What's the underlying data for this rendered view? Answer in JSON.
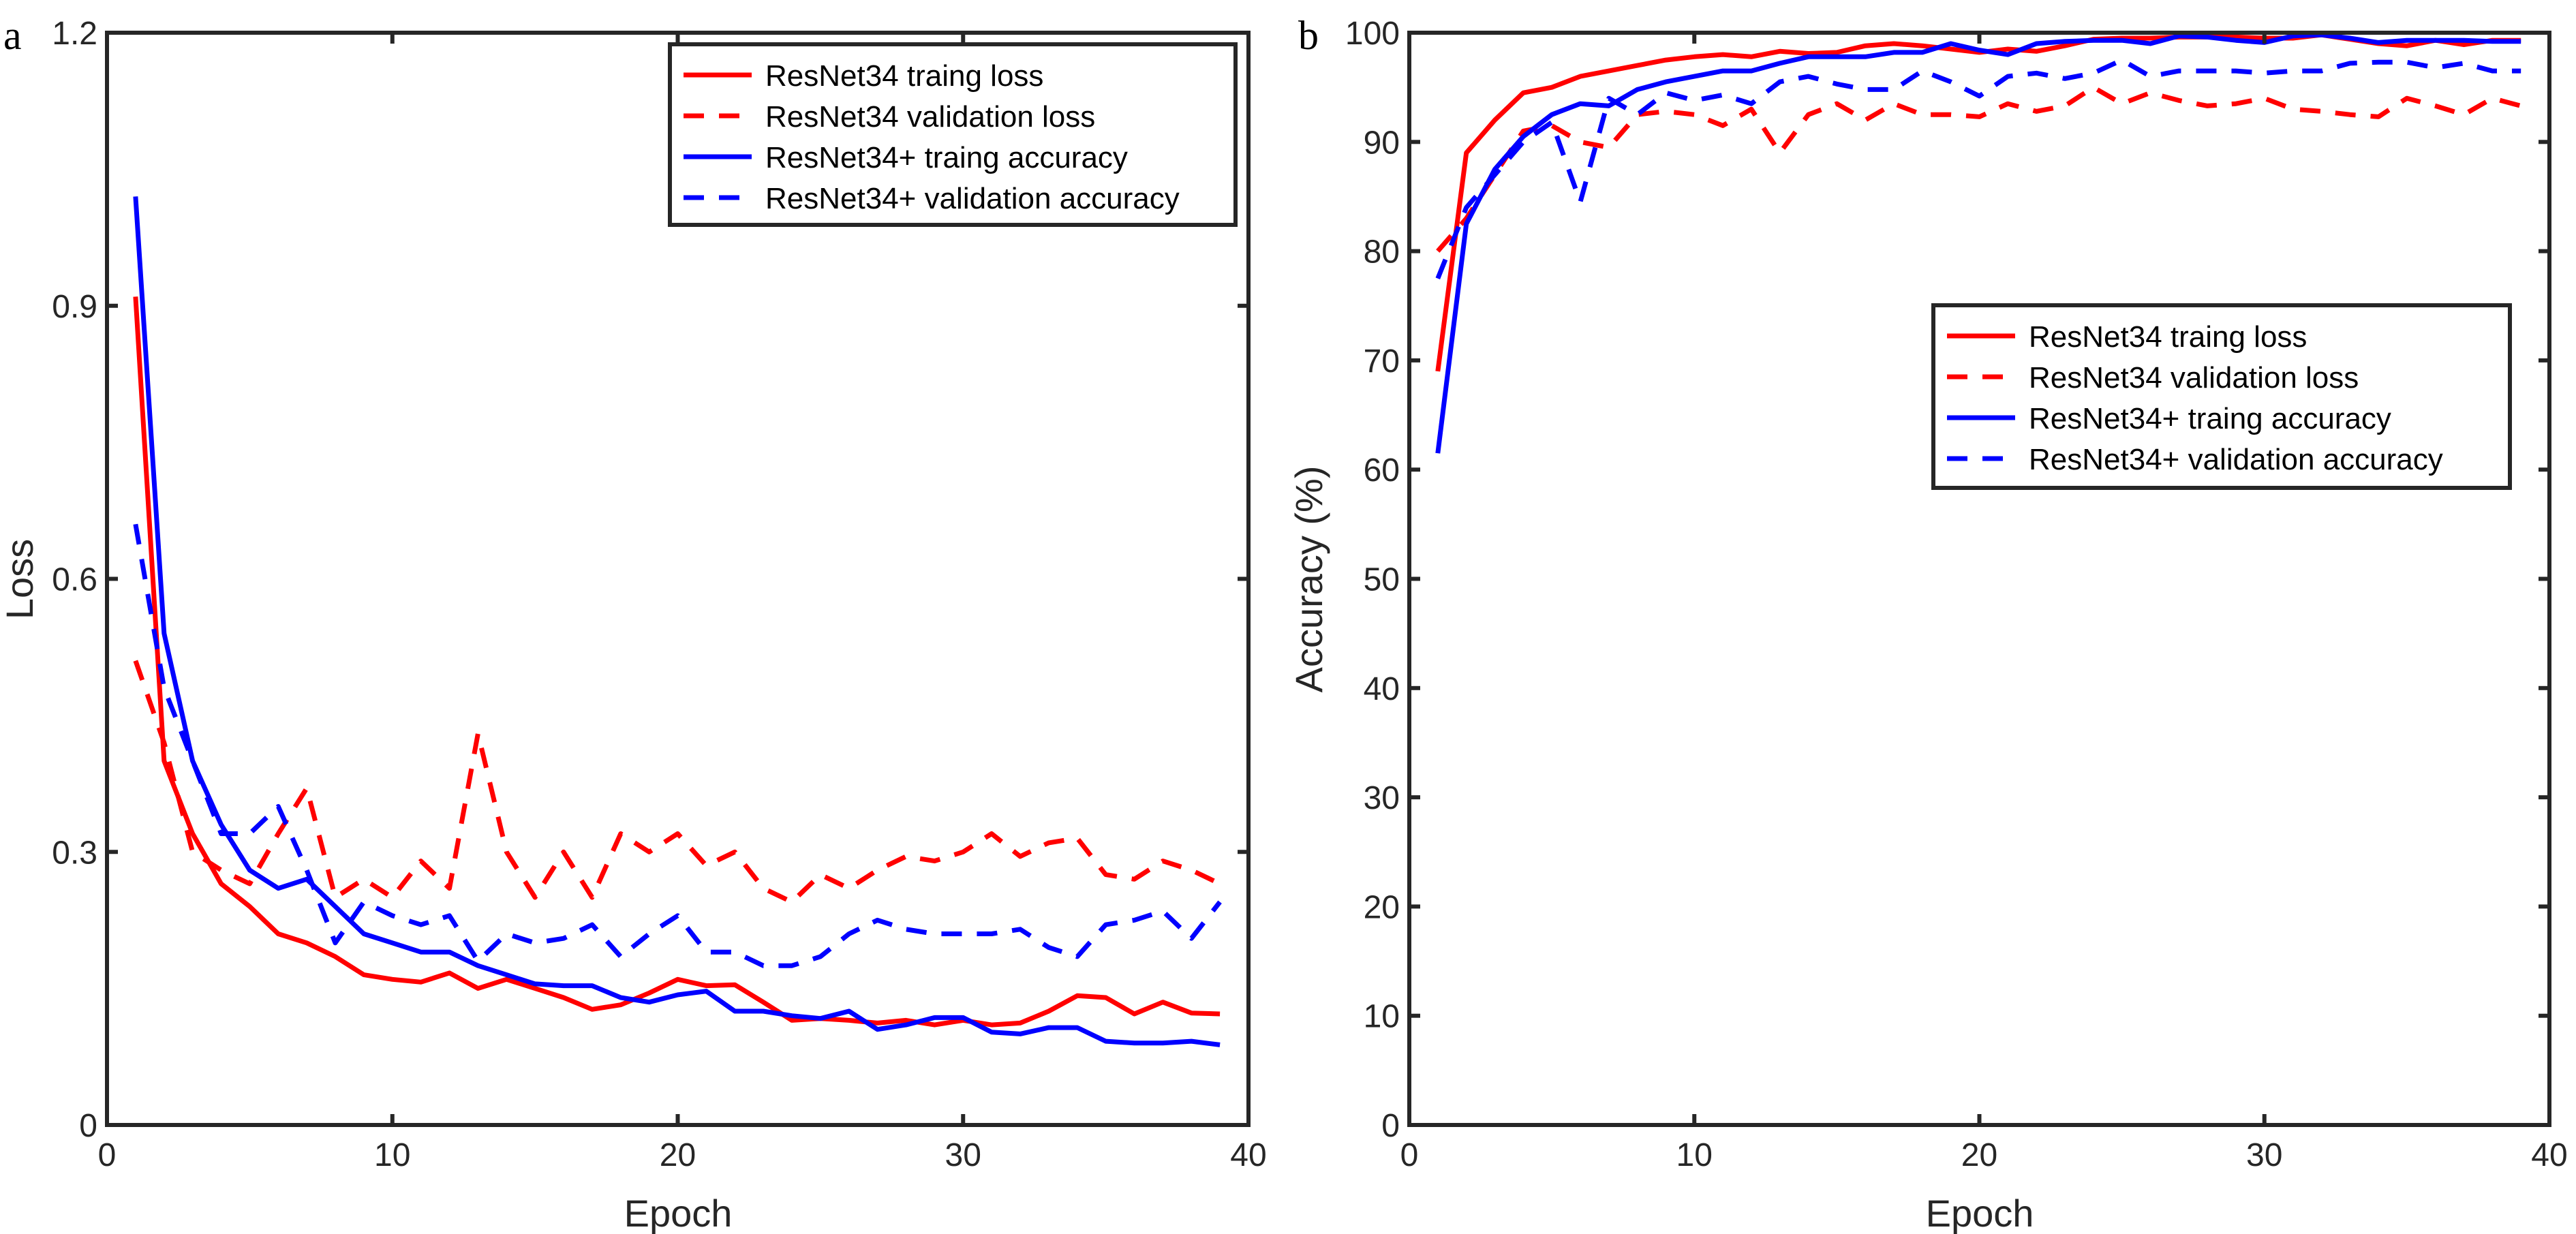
{
  "chart_data": [
    {
      "panel_label": "a",
      "type": "line",
      "xlabel": "Epoch",
      "ylabel": "Loss",
      "xlim": [
        0,
        40
      ],
      "ylim": [
        0,
        1.2
      ],
      "xticks": [
        0,
        10,
        20,
        30,
        40
      ],
      "yticks": [
        0,
        0.3,
        0.6,
        0.9,
        1.2
      ],
      "ytick_labels": [
        "0",
        "0.3",
        "0.6",
        "0.9",
        "1.2"
      ],
      "grid": false,
      "legend_position": "top-right",
      "x": [
        1,
        2,
        3,
        4,
        5,
        6,
        7,
        8,
        9,
        10,
        11,
        12,
        13,
        14,
        15,
        16,
        17,
        18,
        19,
        20,
        21,
        22,
        23,
        24,
        25,
        26,
        27,
        28,
        29,
        30,
        31,
        32,
        33,
        34,
        35,
        36,
        37,
        38,
        39
      ],
      "series": [
        {
          "name": "ResNet34 traing loss",
          "color": "#ff0000",
          "dash": false,
          "values": [
            0.91,
            0.4,
            0.32,
            0.265,
            0.24,
            0.21,
            0.2,
            0.185,
            0.165,
            0.16,
            0.157,
            0.167,
            0.15,
            0.16,
            0.15,
            0.14,
            0.127,
            0.132,
            0.145,
            0.16,
            0.153,
            0.154,
            0.135,
            0.115,
            0.117,
            0.115,
            0.112,
            0.115,
            0.11,
            0.115,
            0.11,
            0.112,
            0.125,
            0.142,
            0.14,
            0.122,
            0.135,
            0.123,
            0.122
          ]
        },
        {
          "name": "ResNet34 validation loss",
          "color": "#ff0000",
          "dash": true,
          "values": [
            0.51,
            0.42,
            0.3,
            0.28,
            0.265,
            0.32,
            0.37,
            0.25,
            0.27,
            0.25,
            0.29,
            0.26,
            0.43,
            0.3,
            0.25,
            0.3,
            0.25,
            0.32,
            0.3,
            0.32,
            0.285,
            0.3,
            0.26,
            0.245,
            0.275,
            0.26,
            0.28,
            0.295,
            0.29,
            0.3,
            0.32,
            0.295,
            0.31,
            0.315,
            0.275,
            0.27,
            0.29,
            0.28,
            0.265
          ]
        },
        {
          "name": "ResNet34+ traing accuracy",
          "color": "#0000ff",
          "dash": false,
          "values": [
            1.02,
            0.54,
            0.4,
            0.33,
            0.28,
            0.26,
            0.27,
            0.24,
            0.21,
            0.2,
            0.19,
            0.19,
            0.175,
            0.165,
            0.155,
            0.153,
            0.153,
            0.14,
            0.135,
            0.143,
            0.147,
            0.125,
            0.125,
            0.12,
            0.117,
            0.125,
            0.105,
            0.11,
            0.118,
            0.118,
            0.102,
            0.1,
            0.107,
            0.107,
            0.092,
            0.09,
            0.09,
            0.092,
            0.088
          ]
        },
        {
          "name": "ResNet34+ validation accuracy",
          "color": "#0000ff",
          "dash": true,
          "values": [
            0.66,
            0.48,
            0.4,
            0.32,
            0.32,
            0.35,
            0.28,
            0.2,
            0.245,
            0.23,
            0.22,
            0.23,
            0.18,
            0.21,
            0.2,
            0.205,
            0.22,
            0.185,
            0.21,
            0.23,
            0.19,
            0.19,
            0.175,
            0.175,
            0.185,
            0.21,
            0.225,
            0.215,
            0.21,
            0.21,
            0.21,
            0.215,
            0.195,
            0.185,
            0.22,
            0.225,
            0.235,
            0.205,
            0.245
          ]
        }
      ]
    },
    {
      "panel_label": "b",
      "type": "line",
      "xlabel": "Epoch",
      "ylabel": "Accuracy (%)",
      "xlim": [
        0,
        40
      ],
      "ylim": [
        0,
        100
      ],
      "xticks": [
        0,
        10,
        20,
        30,
        40
      ],
      "yticks": [
        0,
        10,
        20,
        30,
        40,
        50,
        60,
        70,
        80,
        90,
        100
      ],
      "ytick_labels": [
        "0",
        "10",
        "20",
        "30",
        "40",
        "50",
        "60",
        "70",
        "80",
        "90",
        "100"
      ],
      "grid": false,
      "legend_position": "center-right",
      "x": [
        1,
        2,
        3,
        4,
        5,
        6,
        7,
        8,
        9,
        10,
        11,
        12,
        13,
        14,
        15,
        16,
        17,
        18,
        19,
        20,
        21,
        22,
        23,
        24,
        25,
        26,
        27,
        28,
        29,
        30,
        31,
        32,
        33,
        34,
        35,
        36,
        37,
        38,
        39
      ],
      "series": [
        {
          "name": "ResNet34 traing loss",
          "color": "#ff0000",
          "dash": false,
          "values": [
            69,
            89,
            92,
            94.5,
            95,
            96,
            96.5,
            97,
            97.5,
            97.8,
            98,
            97.8,
            98.3,
            98.1,
            98.2,
            98.8,
            99,
            98.8,
            98.5,
            98.2,
            98.5,
            98.3,
            98.8,
            99.4,
            99.5,
            99.5,
            99.6,
            99.6,
            99.6,
            99.5,
            99.5,
            99.8,
            99.4,
            99,
            98.8,
            99.3,
            98.9,
            99.3,
            99.3
          ]
        },
        {
          "name": "ResNet34 validation loss",
          "color": "#ff0000",
          "dash": true,
          "values": [
            80,
            83,
            87,
            91,
            91.5,
            90,
            89.5,
            92.5,
            92.8,
            92.5,
            91.5,
            93,
            89,
            92.5,
            93.5,
            92,
            93.5,
            92.5,
            92.5,
            92.3,
            93.5,
            92.8,
            93.3,
            95,
            93.5,
            94.5,
            93.8,
            93.3,
            93.5,
            94,
            93,
            92.8,
            92.5,
            92.3,
            94,
            93.3,
            92.5,
            94,
            93.3
          ]
        },
        {
          "name": "ResNet34+ traing accuracy",
          "color": "#0000ff",
          "dash": false,
          "values": [
            61.5,
            82.5,
            87.5,
            90.5,
            92.5,
            93.5,
            93.3,
            94.8,
            95.5,
            96,
            96.5,
            96.5,
            97.2,
            97.8,
            97.8,
            97.8,
            98.2,
            98.2,
            99,
            98.4,
            98,
            99,
            99.2,
            99.3,
            99.3,
            99,
            99.7,
            99.6,
            99.3,
            99.1,
            99.7,
            99.8,
            99.5,
            99.1,
            99.3,
            99.3,
            99.3,
            99.2,
            99.2
          ]
        },
        {
          "name": "ResNet34+ validation accuracy",
          "color": "#0000ff",
          "dash": true,
          "values": [
            77.5,
            84,
            87,
            90,
            91.8,
            84.5,
            94,
            92.5,
            94.5,
            93.8,
            94.3,
            93.5,
            95.5,
            96,
            95.3,
            94.8,
            94.8,
            96.5,
            95.5,
            94.2,
            96,
            96.3,
            95.8,
            96.3,
            97.5,
            96,
            96.5,
            96.5,
            96.5,
            96.3,
            96.5,
            96.5,
            97.2,
            97.3,
            97.3,
            96.8,
            97.2,
            96.5,
            96.5
          ]
        }
      ]
    }
  ]
}
